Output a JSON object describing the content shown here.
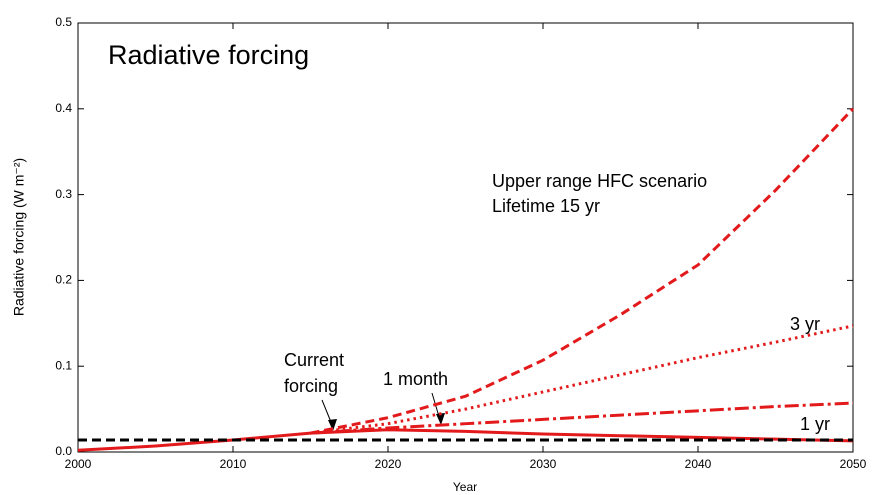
{
  "chart_data": {
    "type": "line",
    "title": "Radiative forcing",
    "x_label": "Year",
    "y_label": "Radiative forcing  (W m⁻²)",
    "x": [
      2000,
      2005,
      2010,
      2015,
      2020,
      2025,
      2030,
      2035,
      2040,
      2045,
      2050
    ],
    "series": [
      {
        "name": "1 month",
        "color": "#e31a1c",
        "style": "solid",
        "values": [
          0.002,
          0.007,
          0.014,
          0.022,
          0.026,
          0.024,
          0.021,
          0.019,
          0.017,
          0.015,
          0.013
        ]
      },
      {
        "name": "1 yr",
        "color": "#e31a1c",
        "style": "dashdot",
        "values": [
          null,
          null,
          null,
          0.022,
          0.028,
          0.033,
          0.038,
          0.043,
          0.048,
          0.053,
          0.057
        ]
      },
      {
        "name": "3 yr",
        "color": "#e31a1c",
        "style": "dotted",
        "values": [
          null,
          null,
          null,
          0.022,
          0.033,
          0.05,
          0.07,
          0.09,
          0.11,
          0.128,
          0.147
        ]
      },
      {
        "name": "Lifetime 15 yr",
        "color": "#e31a1c",
        "style": "dashed",
        "values": [
          null,
          null,
          null,
          0.022,
          0.04,
          0.065,
          0.107,
          0.16,
          0.218,
          0.305,
          0.4
        ]
      },
      {
        "color": "#000000",
        "style": "dashed",
        "values": [
          0.014,
          0.014,
          0.014,
          0.014,
          0.014,
          0.014,
          0.014,
          0.014,
          0.014,
          0.014,
          0.014
        ]
      }
    ],
    "annotations": [
      "Upper range HFC scenario",
      "Current",
      "forcing"
    ],
    "xlim": [
      2000,
      2050
    ],
    "xticks": [
      2000,
      2010,
      2020,
      2030,
      2040,
      2050
    ],
    "ylim": [
      0,
      0.5
    ],
    "yticks": [
      {
        "value": 0,
        "label": "0.0"
      },
      0.1,
      0.2,
      0.3,
      0.4,
      0.5
    ]
  }
}
